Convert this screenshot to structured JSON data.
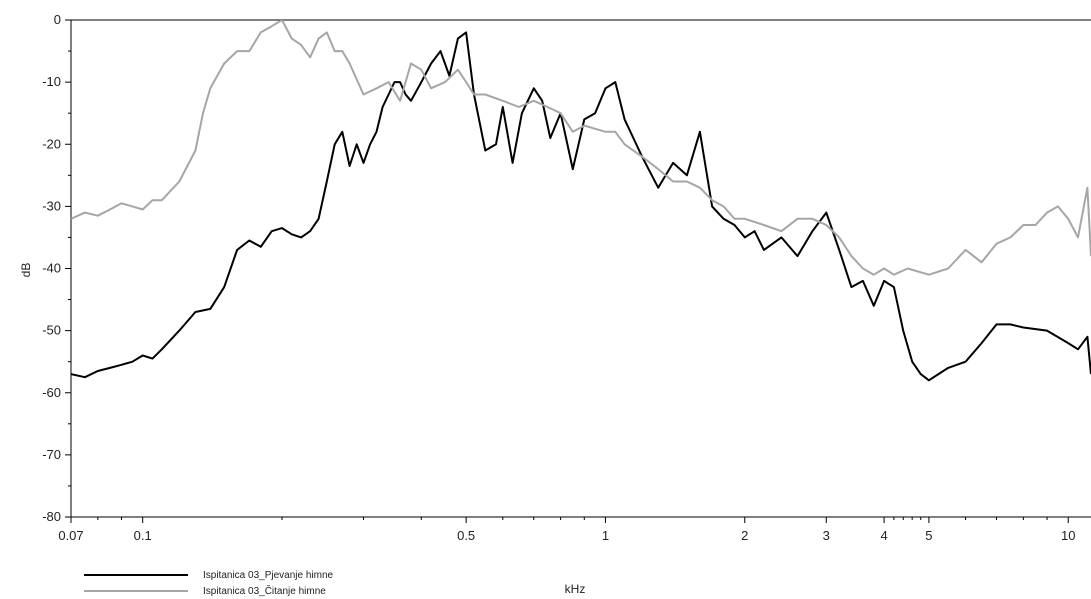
{
  "chart_data": {
    "type": "line",
    "title": "",
    "xlabel": "kHz",
    "ylabel": "dB",
    "xscale": "log",
    "xlim": [
      0.07,
      11.2
    ],
    "ylim": [
      -80,
      0
    ],
    "grid": false,
    "legend_position": "bottom-left",
    "x_ticks": [
      0.07,
      0.1,
      0.5,
      1,
      2,
      3,
      4,
      5,
      10
    ],
    "x_tick_labels": [
      "0.07",
      "0.1",
      "0.5",
      "1",
      "2",
      "3",
      "4",
      "5",
      "10"
    ],
    "x_minor_ticks": [
      0.08,
      0.09,
      0.2,
      0.3,
      0.4,
      0.6,
      0.7,
      0.8,
      0.9,
      4.2,
      4.4,
      4.6,
      4.8,
      6,
      7,
      8,
      9
    ],
    "y_ticks": [
      0,
      -10,
      -20,
      -30,
      -40,
      -50,
      -60,
      -70,
      -80
    ],
    "y_tick_labels": [
      "0",
      "-10",
      "-20",
      "-30",
      "-40",
      "-50",
      "-60",
      "-70",
      "-80"
    ],
    "series": [
      {
        "name": "Ispitanica 03_Pjevanje himne",
        "color": "#000000",
        "x": [
          0.07,
          0.075,
          0.08,
          0.085,
          0.09,
          0.095,
          0.1,
          0.105,
          0.11,
          0.12,
          0.13,
          0.14,
          0.15,
          0.16,
          0.17,
          0.18,
          0.19,
          0.2,
          0.21,
          0.22,
          0.23,
          0.24,
          0.25,
          0.26,
          0.27,
          0.28,
          0.29,
          0.3,
          0.31,
          0.32,
          0.33,
          0.34,
          0.35,
          0.36,
          0.37,
          0.38,
          0.4,
          0.42,
          0.44,
          0.46,
          0.48,
          0.5,
          0.52,
          0.55,
          0.58,
          0.6,
          0.63,
          0.66,
          0.7,
          0.73,
          0.76,
          0.8,
          0.85,
          0.9,
          0.95,
          1.0,
          1.05,
          1.1,
          1.2,
          1.3,
          1.4,
          1.5,
          1.6,
          1.7,
          1.8,
          1.9,
          2.0,
          2.1,
          2.2,
          2.4,
          2.6,
          2.8,
          3.0,
          3.2,
          3.4,
          3.6,
          3.8,
          4.0,
          4.2,
          4.4,
          4.6,
          4.8,
          5.0,
          5.5,
          6.0,
          6.5,
          7.0,
          7.5,
          8.0,
          9.0,
          10.0,
          10.5,
          11.0,
          11.2
        ],
        "y": [
          -57,
          -57.5,
          -56.5,
          -56,
          -55.5,
          -55,
          -54,
          -54.5,
          -53,
          -50,
          -47,
          -46.5,
          -43,
          -37,
          -35.5,
          -36.5,
          -34,
          -33.5,
          -34.5,
          -35,
          -34,
          -32,
          -26,
          -20,
          -18,
          -23.5,
          -20,
          -23,
          -20,
          -18,
          -14,
          -12,
          -10,
          -10,
          -12,
          -13,
          -10,
          -7,
          -5,
          -9,
          -3,
          -2,
          -12,
          -21,
          -20,
          -14,
          -23,
          -15,
          -11,
          -13,
          -19,
          -15,
          -24,
          -16,
          -15,
          -11,
          -10,
          -16,
          -22,
          -27,
          -23,
          -25,
          -18,
          -30,
          -32,
          -33,
          -35,
          -34,
          -37,
          -35,
          -38,
          -34,
          -31,
          -37,
          -43,
          -42,
          -46,
          -42,
          -43,
          -50,
          -55,
          -57,
          -58,
          -56,
          -55,
          -52,
          -49,
          -49,
          -49.5,
          -50,
          -52,
          -53,
          -51,
          -57
        ]
      },
      {
        "name": "Ispitanica 03_Čitanje himne",
        "color": "#a6a6a6",
        "x": [
          0.07,
          0.075,
          0.08,
          0.085,
          0.09,
          0.095,
          0.1,
          0.105,
          0.11,
          0.12,
          0.13,
          0.135,
          0.14,
          0.15,
          0.16,
          0.17,
          0.18,
          0.19,
          0.2,
          0.21,
          0.22,
          0.23,
          0.24,
          0.25,
          0.26,
          0.27,
          0.28,
          0.3,
          0.32,
          0.34,
          0.36,
          0.38,
          0.4,
          0.42,
          0.45,
          0.48,
          0.5,
          0.52,
          0.55,
          0.6,
          0.65,
          0.7,
          0.75,
          0.8,
          0.85,
          0.9,
          1.0,
          1.05,
          1.1,
          1.2,
          1.3,
          1.4,
          1.5,
          1.6,
          1.7,
          1.8,
          1.9,
          2.0,
          2.2,
          2.4,
          2.6,
          2.8,
          3.0,
          3.2,
          3.4,
          3.6,
          3.8,
          4.0,
          4.2,
          4.5,
          5.0,
          5.5,
          6.0,
          6.5,
          7.0,
          7.5,
          8.0,
          8.5,
          9.0,
          9.5,
          10.0,
          10.5,
          11.0,
          11.2
        ],
        "y": [
          -32,
          -31,
          -31.5,
          -30.5,
          -29.5,
          -30,
          -30.5,
          -29,
          -29,
          -26,
          -21,
          -15,
          -11,
          -7,
          -5,
          -5,
          -2,
          -1,
          0,
          -3,
          -4,
          -6,
          -3,
          -2,
          -5,
          -5,
          -7,
          -12,
          -11,
          -10,
          -13,
          -7,
          -8,
          -11,
          -10,
          -8,
          -10,
          -12,
          -12,
          -13,
          -14,
          -13,
          -14,
          -15,
          -18,
          -17,
          -18,
          -18,
          -20,
          -22,
          -24,
          -26,
          -26,
          -27,
          -29,
          -30,
          -32,
          -32,
          -33,
          -34,
          -32,
          -32,
          -33,
          -35,
          -38,
          -40,
          -41,
          -40,
          -41,
          -40,
          -41,
          -40,
          -37,
          -39,
          -36,
          -35,
          -33,
          -33,
          -31,
          -30,
          -32,
          -35,
          -27,
          -38
        ]
      }
    ]
  }
}
